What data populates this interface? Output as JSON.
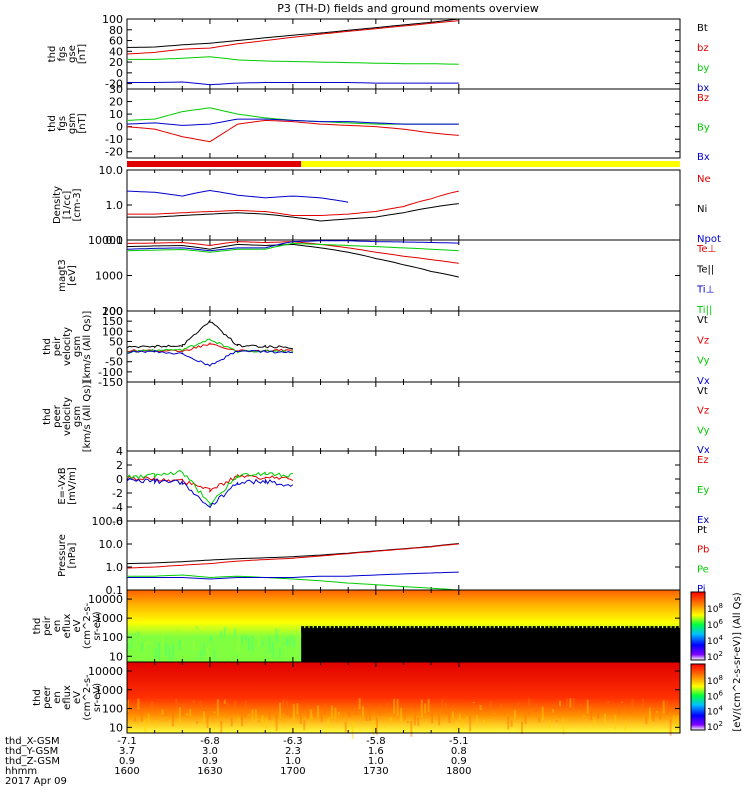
{
  "title": "P3 (TH-D) fields and ground moments overview",
  "colors": {
    "black": "#000000",
    "red": "#e00000",
    "green": "#00cc00",
    "blue": "#0000cc",
    "yellow": "#ffff00"
  },
  "panels": [
    {
      "id": "fgs_gse",
      "ylabel": [
        "thd",
        "fgs",
        "gse",
        "[nT]"
      ],
      "ticks": [
        "100",
        "80",
        "60",
        "40",
        "20",
        "0",
        "-20"
      ],
      "log": false,
      "ylim": [
        -30,
        100
      ],
      "legend": [
        {
          "label": "Bt",
          "color": "black"
        },
        {
          "label": "bz",
          "color": "red"
        },
        {
          "label": "by",
          "color": "green"
        },
        {
          "label": "bx",
          "color": "blue"
        }
      ]
    },
    {
      "id": "fgs_gsm",
      "ylabel": [
        "thd",
        "fgs",
        "gsm",
        "[nT]"
      ],
      "ticks": [
        "30",
        "20",
        "10",
        "0",
        "-10",
        "-20"
      ],
      "log": false,
      "ylim": [
        -25,
        30
      ],
      "legend": [
        {
          "label": "Bz",
          "color": "red"
        },
        {
          "label": "By",
          "color": "green"
        },
        {
          "label": "Bx",
          "color": "blue"
        }
      ]
    },
    {
      "id": "density",
      "ylabel": [
        "Density",
        "[1/cc]",
        "[cm-3]"
      ],
      "ticks": [
        "10.0",
        "1.0",
        "0.1"
      ],
      "log": true,
      "ylim": [
        0.1,
        10
      ],
      "legend": [
        {
          "label": "Ne",
          "color": "red"
        },
        {
          "label": "Ni",
          "color": "black"
        },
        {
          "label": "Npot",
          "color": "blue"
        }
      ]
    },
    {
      "id": "temperature",
      "ylabel": [
        "magt3",
        "[eV]"
      ],
      "ticks": [
        "10000",
        "1000",
        "100"
      ],
      "log": true,
      "ylim": [
        100,
        10000
      ],
      "legend": [
        {
          "label": "Te⊥",
          "color": "red"
        },
        {
          "label": "Te||",
          "color": "black"
        },
        {
          "label": "Ti⊥",
          "color": "blue"
        },
        {
          "label": "Ti||",
          "color": "green"
        }
      ]
    },
    {
      "id": "peir_velocity",
      "ylabel": [
        "thd",
        "peir",
        "velocity",
        "gsm",
        "[km/s (All Qs)]"
      ],
      "ticks": [
        "200",
        "150",
        "100",
        "50",
        "0",
        "-50",
        "-100",
        "-150"
      ],
      "log": false,
      "ylim": [
        -150,
        200
      ],
      "legend": [
        {
          "label": "Vt",
          "color": "black"
        },
        {
          "label": "Vz",
          "color": "red"
        },
        {
          "label": "Vy",
          "color": "green"
        },
        {
          "label": "Vx",
          "color": "blue"
        }
      ]
    },
    {
      "id": "peer_velocity",
      "ylabel": [
        "thd",
        "peer",
        "velocity",
        "gsm",
        "[km/s (All Qs)]"
      ],
      "ticks": [],
      "log": false,
      "ylim": [
        -1,
        1
      ],
      "legend": [
        {
          "label": "Vt",
          "color": "black"
        },
        {
          "label": "Vz",
          "color": "red"
        },
        {
          "label": "Vy",
          "color": "green"
        },
        {
          "label": "Vx",
          "color": "blue"
        }
      ]
    },
    {
      "id": "efield",
      "ylabel": [
        "E=-VxB",
        "[mV/m]"
      ],
      "ticks": [
        "4",
        "2",
        "0",
        "-2",
        "-4",
        "-6"
      ],
      "log": false,
      "ylim": [
        -6,
        4
      ],
      "legend": [
        {
          "label": "Ez",
          "color": "red"
        },
        {
          "label": "Ey",
          "color": "green"
        },
        {
          "label": "Ex",
          "color": "blue"
        }
      ]
    },
    {
      "id": "pressure",
      "ylabel": [
        "Pressure",
        "[nPa]"
      ],
      "ticks": [
        "100.0",
        "10.0",
        "1.0",
        "0.1"
      ],
      "log": true,
      "ylim": [
        0.1,
        100
      ],
      "legend": [
        {
          "label": "Pt",
          "color": "black"
        },
        {
          "label": "Pb",
          "color": "red"
        },
        {
          "label": "Pe",
          "color": "green"
        },
        {
          "label": "Pi",
          "color": "blue"
        }
      ]
    },
    {
      "id": "peir_eflux",
      "ylabel": [
        "thd",
        "peir",
        "en",
        "eflux",
        "eV",
        "(cm^2-s-",
        "sr-eV)"
      ],
      "ticks": [
        "10000",
        "1000",
        "100",
        "10"
      ],
      "log": true,
      "ylim": [
        5,
        30000
      ],
      "legend": []
    },
    {
      "id": "peer_eflux",
      "ylabel": [
        "thd",
        "peer",
        "en",
        "eflux",
        "eV",
        "(cm^2-s-",
        "sr-eV)"
      ],
      "ticks": [
        "10000",
        "1000",
        "100",
        "10"
      ],
      "log": true,
      "ylim": [
        5,
        30000
      ],
      "legend": []
    }
  ],
  "colorbar": {
    "label": "[eV/(cm^2-s-sr-eV)] (All Qs)",
    "upper_ticks": [
      "10^8",
      "10^6",
      "10^4",
      "10^2"
    ],
    "lower_ticks": [
      "10^8",
      "10^6",
      "10^4",
      "10^2"
    ]
  },
  "x_axis": {
    "rows": [
      {
        "label": "thd_X-GSM",
        "values": [
          "-7.1",
          "-6.8",
          "-6.3",
          "-5.8",
          "-5.1"
        ]
      },
      {
        "label": "thd_Y-GSM",
        "values": [
          "3.7",
          "3.0",
          "2.3",
          "1.6",
          "0.8"
        ]
      },
      {
        "label": "thd_Z-GSM",
        "values": [
          "0.9",
          "0.9",
          "1.0",
          "1.0",
          "0.9"
        ]
      },
      {
        "label": "hhmm",
        "values": [
          "1600",
          "1630",
          "1700",
          "1730",
          "1800"
        ]
      }
    ],
    "date": "2017 Apr 09"
  },
  "chart_data": [
    {
      "type": "line",
      "title": "P3 (TH-D) fields and ground moments overview",
      "ylabel": "thd fgs gse [nT]",
      "xlabel": "hhmm",
      "x": [
        "1600",
        "1610",
        "1620",
        "1630",
        "1640",
        "1650",
        "1700",
        "1710",
        "1720",
        "1730",
        "1740",
        "1750",
        "1800"
      ],
      "ylim": [
        -30,
        100
      ],
      "series": [
        {
          "name": "Bt",
          "values": [
            47,
            48,
            52,
            55,
            60,
            65,
            70,
            74,
            79,
            84,
            89,
            94,
            100
          ]
        },
        {
          "name": "bz",
          "values": [
            35,
            38,
            44,
            46,
            54,
            60,
            66,
            72,
            77,
            82,
            87,
            92,
            97
          ]
        },
        {
          "name": "by",
          "values": [
            25,
            25,
            27,
            30,
            24,
            22,
            21,
            20,
            19,
            18,
            17,
            17,
            16
          ]
        },
        {
          "name": "bx",
          "values": [
            -18,
            -18,
            -17,
            -22,
            -19,
            -18,
            -18,
            -18,
            -18,
            -19,
            -19,
            -19,
            -19
          ]
        }
      ]
    },
    {
      "type": "line",
      "ylabel": "thd fgs gsm [nT]",
      "xlabel": "hhmm",
      "x": [
        "1600",
        "1610",
        "1620",
        "1630",
        "1640",
        "1650",
        "1700",
        "1710",
        "1720",
        "1730",
        "1740",
        "1750",
        "1800"
      ],
      "ylim": [
        -25,
        30
      ],
      "series": [
        {
          "name": "Bz",
          "values": [
            0,
            -2,
            -8,
            -12,
            2,
            5,
            4,
            2,
            1,
            0,
            -2,
            -5,
            -7
          ]
        },
        {
          "name": "By",
          "values": [
            5,
            6,
            12,
            15,
            10,
            7,
            5,
            4,
            3,
            2,
            2,
            2,
            2
          ]
        },
        {
          "name": "Bx",
          "values": [
            2,
            3,
            1,
            2,
            6,
            6,
            5,
            4,
            4,
            3,
            2,
            2,
            2
          ]
        }
      ]
    },
    {
      "type": "line",
      "ylabel": "Density [1/cc] [cm-3]",
      "xlabel": "hhmm",
      "x": [
        "1600",
        "1610",
        "1620",
        "1630",
        "1640",
        "1650",
        "1700",
        "1710",
        "1720",
        "1730",
        "1740",
        "1750",
        "1800"
      ],
      "ylim": [
        0.1,
        10
      ],
      "yscale": "log",
      "series": [
        {
          "name": "Ne",
          "values": [
            0.55,
            0.55,
            0.6,
            0.65,
            0.7,
            0.65,
            0.5,
            0.5,
            0.55,
            0.65,
            0.9,
            1.5,
            2.5
          ]
        },
        {
          "name": "Ni",
          "values": [
            0.45,
            0.45,
            0.5,
            0.55,
            0.6,
            0.55,
            0.45,
            0.35,
            0.4,
            0.45,
            0.6,
            0.85,
            1.1
          ]
        },
        {
          "name": "Npot",
          "values": [
            2.5,
            2.3,
            1.8,
            2.6,
            1.9,
            1.6,
            1.8,
            1.6,
            1.2,
            null,
            null,
            null,
            null
          ]
        }
      ]
    },
    {
      "type": "line",
      "ylabel": "magt3 [eV]",
      "xlabel": "hhmm",
      "x": [
        "1600",
        "1610",
        "1620",
        "1630",
        "1640",
        "1650",
        "1700",
        "1710",
        "1720",
        "1730",
        "1740",
        "1750",
        "1800"
      ],
      "ylim": [
        100,
        10000
      ],
      "yscale": "log",
      "series": [
        {
          "name": "Te⊥",
          "values": [
            8000,
            8200,
            8500,
            7000,
            9000,
            8500,
            9000,
            7500,
            6000,
            4500,
            3500,
            2800,
            2200
          ]
        },
        {
          "name": "Te||",
          "values": [
            6500,
            6800,
            7000,
            5500,
            7500,
            7000,
            7500,
            6000,
            4500,
            3000,
            2000,
            1300,
            900
          ]
        },
        {
          "name": "Ti⊥",
          "values": [
            5500,
            5800,
            6000,
            5000,
            6000,
            6000,
            9000,
            9500,
            9500,
            9000,
            8800,
            8500,
            8200
          ]
        },
        {
          "name": "Ti||",
          "values": [
            5000,
            5200,
            5400,
            4500,
            5500,
            5500,
            8000,
            7500,
            7000,
            6500,
            6000,
            5500,
            5000
          ]
        }
      ]
    },
    {
      "type": "line",
      "ylabel": "thd peir velocity gsm [km/s (All Qs)]",
      "xlabel": "hhmm",
      "x": [
        "1600",
        "1610",
        "1620",
        "1630",
        "1640",
        "1650",
        "1700"
      ],
      "ylim": [
        -150,
        200
      ],
      "series": [
        {
          "name": "Vt",
          "values": [
            20,
            25,
            30,
            150,
            30,
            25,
            20
          ]
        },
        {
          "name": "Vz",
          "values": [
            5,
            5,
            0,
            40,
            5,
            5,
            5
          ]
        },
        {
          "name": "Vy",
          "values": [
            0,
            5,
            10,
            60,
            0,
            5,
            0
          ]
        },
        {
          "name": "Vx",
          "values": [
            -5,
            0,
            -10,
            -70,
            5,
            0,
            -5
          ]
        }
      ]
    },
    {
      "type": "line",
      "ylabel": "thd peer velocity gsm [km/s (All Qs)]",
      "xlabel": "hhmm",
      "series": []
    },
    {
      "type": "line",
      "ylabel": "E=-VxB [mV/m]",
      "xlabel": "hhmm",
      "x": [
        "1600",
        "1610",
        "1620",
        "1630",
        "1640",
        "1650",
        "1700"
      ],
      "ylim": [
        -6,
        4
      ],
      "series": [
        {
          "name": "Ez",
          "values": [
            0.2,
            0.0,
            -0.3,
            -1.5,
            0.3,
            0.2,
            0.0
          ]
        },
        {
          "name": "Ey",
          "values": [
            0.3,
            0.5,
            1.0,
            -3.5,
            0.5,
            0.8,
            0.5
          ]
        },
        {
          "name": "Ex",
          "values": [
            -0.2,
            -0.3,
            -0.5,
            -4.0,
            -0.5,
            -0.3,
            -1.0
          ]
        }
      ]
    },
    {
      "type": "line",
      "ylabel": "Pressure [nPa]",
      "xlabel": "hhmm",
      "x": [
        "1600",
        "1610",
        "1620",
        "1630",
        "1640",
        "1650",
        "1700",
        "1710",
        "1720",
        "1730",
        "1740",
        "1750",
        "1800"
      ],
      "ylim": [
        0.1,
        100
      ],
      "yscale": "log",
      "series": [
        {
          "name": "Pt",
          "values": [
            1.4,
            1.5,
            1.7,
            2.0,
            2.3,
            2.5,
            2.8,
            3.3,
            4.0,
            5.0,
            6.2,
            7.8,
            10.5
          ]
        },
        {
          "name": "Pb",
          "values": [
            0.9,
            1.0,
            1.2,
            1.4,
            1.8,
            2.1,
            2.4,
            3.0,
            3.8,
            4.8,
            6.0,
            7.5,
            10.0
          ]
        },
        {
          "name": "Pe",
          "values": [
            0.4,
            0.4,
            0.45,
            0.35,
            0.4,
            0.35,
            0.3,
            0.25,
            0.2,
            0.17,
            0.14,
            0.12,
            0.1
          ]
        },
        {
          "name": "Pi",
          "values": [
            0.35,
            0.35,
            0.35,
            0.3,
            0.35,
            0.35,
            0.35,
            0.4,
            0.4,
            0.45,
            0.5,
            0.55,
            0.6
          ]
        }
      ]
    },
    {
      "type": "heatmap",
      "ylabel": "thd peir en eflux eV (cm^2-s- sr-eV)",
      "xlabel": "hhmm",
      "x": [
        "1600",
        "1630",
        "1700",
        "1730",
        "1800"
      ],
      "ylim": [
        5,
        30000
      ],
      "yscale": "log",
      "colorbar": [
        "10^2",
        "10^4",
        "10^6",
        "10^8"
      ]
    },
    {
      "type": "heatmap",
      "ylabel": "thd peer en eflux eV (cm^2-s- sr-eV)",
      "xlabel": "hhmm",
      "x": [
        "1600",
        "1630",
        "1700",
        "1730",
        "1800"
      ],
      "ylim": [
        5,
        30000
      ],
      "yscale": "log",
      "colorbar": [
        "10^2",
        "10^4",
        "10^6",
        "10^8"
      ]
    }
  ]
}
